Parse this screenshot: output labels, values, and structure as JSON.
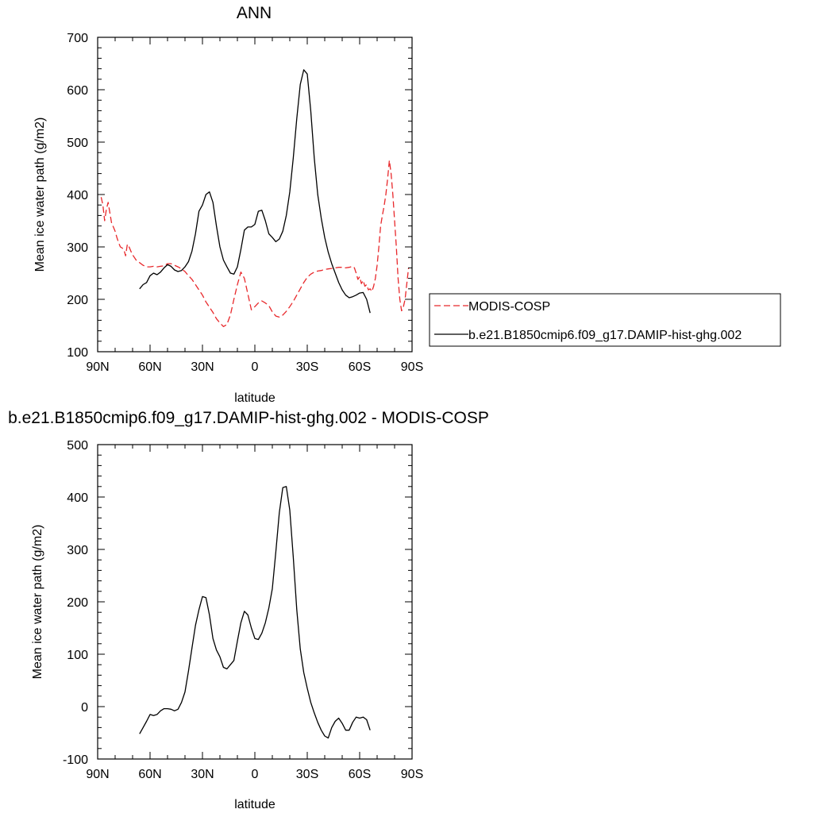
{
  "chart_data": [
    {
      "type": "line",
      "title": "ANN",
      "xlabel": "latitude",
      "ylabel": "Mean ice water path (g/m2)",
      "xlim": [
        90,
        -90
      ],
      "ylim": [
        100,
        700
      ],
      "x_ticks": [
        {
          "value": 90,
          "label": "90N"
        },
        {
          "value": 60,
          "label": "60N"
        },
        {
          "value": 30,
          "label": "30N"
        },
        {
          "value": 0,
          "label": "0"
        },
        {
          "value": -30,
          "label": "30S"
        },
        {
          "value": -60,
          "label": "60S"
        },
        {
          "value": -90,
          "label": "90S"
        }
      ],
      "y_ticks": [
        {
          "value": 100,
          "label": "100"
        },
        {
          "value": 200,
          "label": "200"
        },
        {
          "value": 300,
          "label": "300"
        },
        {
          "value": 400,
          "label": "400"
        },
        {
          "value": 500,
          "label": "500"
        },
        {
          "value": 600,
          "label": "600"
        },
        {
          "value": 700,
          "label": "700"
        }
      ],
      "legend": {
        "placement": "right"
      },
      "series": [
        {
          "name": "MODIS-COSP",
          "color": "#e8282b",
          "dash": "dashed",
          "x": [
            88,
            87,
            86,
            85,
            84,
            83,
            82,
            81,
            80,
            79,
            78,
            77,
            76,
            75,
            74,
            73,
            72,
            71,
            70,
            69,
            68,
            67,
            66,
            64,
            62,
            60,
            58,
            56,
            54,
            52,
            50,
            48,
            46,
            44,
            42,
            40,
            38,
            36,
            34,
            32,
            30,
            28,
            26,
            24,
            22,
            20,
            18,
            16,
            14,
            12,
            10,
            8,
            6,
            4,
            2,
            0,
            -2,
            -4,
            -6,
            -8,
            -10,
            -12,
            -14,
            -16,
            -18,
            -20,
            -22,
            -24,
            -26,
            -28,
            -30,
            -32,
            -34,
            -36,
            -38,
            -40,
            -42,
            -44,
            -46,
            -48,
            -50,
            -52,
            -54,
            -56,
            -57,
            -58,
            -59,
            -60,
            -61,
            -62,
            -63,
            -64,
            -65,
            -66,
            -67,
            -68,
            -69,
            -70,
            -71,
            -72,
            -73,
            -74,
            -75,
            -76,
            -77,
            -78,
            -79,
            -80,
            -81,
            -82,
            -83,
            -84,
            -85,
            -86,
            -87,
            -88
          ],
          "y": [
            395,
            380,
            350,
            372,
            385,
            365,
            345,
            338,
            330,
            318,
            308,
            300,
            298,
            295,
            283,
            305,
            300,
            292,
            285,
            280,
            275,
            272,
            270,
            265,
            262,
            262,
            263,
            262,
            263,
            264,
            268,
            268,
            265,
            262,
            258,
            253,
            245,
            238,
            228,
            218,
            208,
            195,
            185,
            175,
            163,
            155,
            148,
            152,
            170,
            200,
            228,
            252,
            240,
            210,
            180,
            186,
            193,
            197,
            193,
            188,
            176,
            168,
            166,
            170,
            177,
            186,
            196,
            208,
            220,
            232,
            242,
            248,
            252,
            254,
            255,
            257,
            258,
            259,
            260,
            261,
            261,
            260,
            261,
            263,
            260,
            250,
            238,
            243,
            230,
            236,
            225,
            228,
            218,
            220,
            215,
            225,
            240,
            265,
            300,
            340,
            360,
            378,
            400,
            430,
            465,
            440,
            400,
            350,
            300,
            240,
            200,
            178,
            185,
            200,
            230,
            260
          ]
        },
        {
          "name": "b.e21.B1850cmip6.f09_g17.DAMIP-hist-ghg.002",
          "color": "#000000",
          "dash": "solid",
          "x": [
            66,
            64,
            62,
            60,
            58,
            56,
            54,
            52,
            50,
            48,
            46,
            44,
            42,
            40,
            38,
            36,
            34,
            32,
            30,
            28,
            26,
            24,
            22,
            20,
            18,
            16,
            14,
            12,
            10,
            8,
            6,
            4,
            2,
            0,
            -2,
            -4,
            -6,
            -8,
            -10,
            -12,
            -14,
            -16,
            -18,
            -20,
            -22,
            -24,
            -26,
            -28,
            -30,
            -32,
            -34,
            -36,
            -38,
            -40,
            -42,
            -44,
            -46,
            -48,
            -50,
            -52,
            -54,
            -56,
            -58,
            -60,
            -62,
            -64,
            -66
          ],
          "y": [
            220,
            228,
            232,
            245,
            250,
            247,
            252,
            260,
            266,
            263,
            256,
            253,
            255,
            262,
            272,
            292,
            325,
            368,
            380,
            400,
            405,
            385,
            340,
            300,
            275,
            262,
            250,
            248,
            262,
            295,
            332,
            338,
            338,
            343,
            368,
            370,
            350,
            325,
            318,
            310,
            315,
            330,
            360,
            405,
            470,
            545,
            610,
            638,
            630,
            560,
            470,
            400,
            355,
            318,
            290,
            268,
            250,
            232,
            218,
            208,
            203,
            205,
            208,
            212,
            213,
            200,
            174
          ]
        }
      ]
    },
    {
      "type": "line",
      "title": "b.e21.B1850cmip6.f09_g17.DAMIP-hist-ghg.002 - MODIS-COSP",
      "xlabel": "latitude",
      "ylabel": "Mean ice water path (g/m2)",
      "xlim": [
        90,
        -90
      ],
      "ylim": [
        -100,
        500
      ],
      "x_ticks": [
        {
          "value": 90,
          "label": "90N"
        },
        {
          "value": 60,
          "label": "60N"
        },
        {
          "value": 30,
          "label": "30N"
        },
        {
          "value": 0,
          "label": "0"
        },
        {
          "value": -30,
          "label": "30S"
        },
        {
          "value": -60,
          "label": "60S"
        },
        {
          "value": -90,
          "label": "90S"
        }
      ],
      "y_ticks": [
        {
          "value": -100,
          "label": "-100"
        },
        {
          "value": 0,
          "label": "0"
        },
        {
          "value": 100,
          "label": "100"
        },
        {
          "value": 200,
          "label": "200"
        },
        {
          "value": 300,
          "label": "300"
        },
        {
          "value": 400,
          "label": "400"
        },
        {
          "value": 500,
          "label": "500"
        }
      ],
      "series": [
        {
          "color": "#000000",
          "dash": "solid",
          "x": [
            66,
            64,
            62,
            60,
            58,
            56,
            54,
            52,
            50,
            48,
            46,
            44,
            42,
            40,
            38,
            36,
            34,
            32,
            30,
            28,
            26,
            24,
            22,
            20,
            18,
            16,
            14,
            12,
            10,
            8,
            6,
            4,
            2,
            0,
            -2,
            -4,
            -6,
            -8,
            -10,
            -12,
            -14,
            -16,
            -18,
            -20,
            -22,
            -24,
            -26,
            -28,
            -30,
            -32,
            -34,
            -36,
            -38,
            -40,
            -42,
            -44,
            -46,
            -48,
            -50,
            -52,
            -54,
            -56,
            -58,
            -60,
            -62,
            -64,
            -66
          ],
          "y": [
            -52,
            -40,
            -28,
            -15,
            -17,
            -15,
            -8,
            -4,
            -4,
            -5,
            -8,
            -5,
            8,
            28,
            68,
            112,
            155,
            185,
            210,
            208,
            175,
            130,
            108,
            95,
            75,
            72,
            80,
            88,
            125,
            160,
            182,
            175,
            150,
            130,
            128,
            140,
            160,
            188,
            225,
            295,
            370,
            418,
            420,
            375,
            285,
            185,
            110,
            65,
            35,
            8,
            -12,
            -30,
            -45,
            -56,
            -60,
            -40,
            -28,
            -22,
            -32,
            -45,
            -45,
            -30,
            -20,
            -22,
            -20,
            -25,
            -45
          ]
        }
      ]
    }
  ]
}
